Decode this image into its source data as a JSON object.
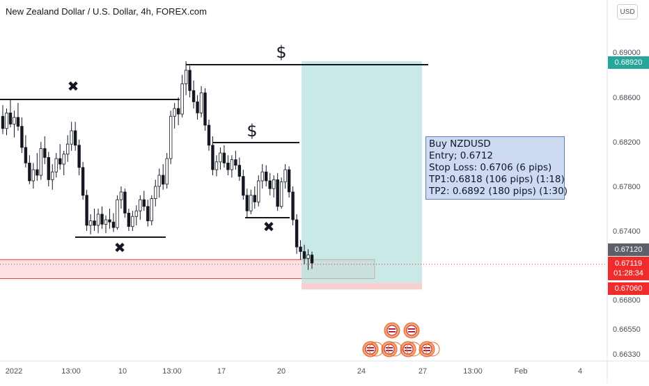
{
  "header": {
    "symbol_title": "New Zealand Dollar / U.S. Dollar, 4h, FOREX.com",
    "currency_button": "USD"
  },
  "info_box": {
    "lines": [
      "Buy NZDUSD",
      "Entry; 0.6712",
      "Stop Loss: 0.6706 (6 pips)",
      "TP1:0.6818 (106 pips) (1:18)",
      "TP2: 0.6892 (180 pips) (1:30)"
    ]
  },
  "price_tags": {
    "tp": {
      "label": "0.68920",
      "color": "#26a69a"
    },
    "entry": {
      "label": "0.67120",
      "color": "#5d606b"
    },
    "current": {
      "label": "0.67119",
      "countdown": "01:28:34",
      "color": "#ef2b2b"
    },
    "stop": {
      "label": "0.67060",
      "color": "#ef2b2b"
    }
  },
  "annotations": {
    "dollar_labels": [
      "$",
      "$"
    ],
    "cross_labels": [
      "✖",
      "✖",
      "✖"
    ]
  },
  "colors": {
    "bullish": "#26a69a",
    "bearish": "#ef5350",
    "candle": "#131722",
    "profit_zone": "#b2dfdb",
    "loss_zone": "#f5c6c6",
    "support_zone_border": "#e53935",
    "support_zone_fill": "#fde3e3",
    "level_line": "#131722"
  },
  "chart_data": {
    "type": "candlestick",
    "title": "New Zealand Dollar / U.S. Dollar, 4h, FOREX.com",
    "y_axis": {
      "ticks": [
        0.69,
        0.686,
        0.682,
        0.678,
        0.674,
        0.668,
        0.6655,
        0.6633
      ],
      "tick_labels": [
        "0.69000",
        "0.68600",
        "0.68200",
        "0.67800",
        "0.67400",
        "0.66800",
        "0.66550",
        "0.66330"
      ],
      "range": [
        0.6628,
        0.6918
      ]
    },
    "x_axis": {
      "tick_labels": [
        "2022",
        "13:00",
        "10",
        "13:00",
        "17",
        "20",
        "24",
        "27",
        "13:00",
        "Feb",
        "4"
      ]
    },
    "trade": {
      "direction": "long",
      "entry": 0.6712,
      "stop_loss": 0.6706,
      "take_profit": 0.6892
    },
    "levels": [
      {
        "kind": "resistance",
        "price": 0.6859
      },
      {
        "kind": "resistance",
        "price": 0.6892
      },
      {
        "kind": "resistance",
        "price": 0.6821
      },
      {
        "kind": "support",
        "price": 0.6737
      },
      {
        "kind": "support",
        "price": 0.6753
      }
    ],
    "support_zone": [
      0.67045,
      0.6715
    ],
    "candles": [
      [
        0.6843,
        0.6853,
        0.6827,
        0.6832
      ],
      [
        0.6832,
        0.685,
        0.6826,
        0.6846
      ],
      [
        0.6846,
        0.6858,
        0.6833,
        0.6836
      ],
      [
        0.6836,
        0.6848,
        0.6824,
        0.6842
      ],
      [
        0.6842,
        0.6855,
        0.683,
        0.6834
      ],
      [
        0.6834,
        0.6842,
        0.681,
        0.6815
      ],
      [
        0.6815,
        0.6826,
        0.6797,
        0.6801
      ],
      [
        0.6801,
        0.6808,
        0.6782,
        0.6785
      ],
      [
        0.6785,
        0.6801,
        0.6778,
        0.6795
      ],
      [
        0.6795,
        0.681,
        0.6785,
        0.679
      ],
      [
        0.679,
        0.682,
        0.6786,
        0.6814
      ],
      [
        0.6814,
        0.6825,
        0.68,
        0.6806
      ],
      [
        0.6806,
        0.6811,
        0.678,
        0.6786
      ],
      [
        0.6786,
        0.68,
        0.6777,
        0.6793
      ],
      [
        0.6793,
        0.681,
        0.6788,
        0.6805
      ],
      [
        0.6805,
        0.6818,
        0.6795,
        0.68
      ],
      [
        0.68,
        0.6812,
        0.679,
        0.6809
      ],
      [
        0.6809,
        0.6826,
        0.6802,
        0.6818
      ],
      [
        0.6818,
        0.6838,
        0.6812,
        0.683
      ],
      [
        0.683,
        0.6838,
        0.6812,
        0.6817
      ],
      [
        0.6817,
        0.6822,
        0.679,
        0.6797
      ],
      [
        0.6797,
        0.6802,
        0.6768,
        0.6772
      ],
      [
        0.6772,
        0.6777,
        0.674,
        0.6745
      ],
      [
        0.6745,
        0.6755,
        0.6737,
        0.6749
      ],
      [
        0.6749,
        0.676,
        0.674,
        0.6745
      ],
      [
        0.6745,
        0.676,
        0.6738,
        0.6755
      ],
      [
        0.6755,
        0.6762,
        0.6742,
        0.6746
      ],
      [
        0.6746,
        0.6754,
        0.6738,
        0.675
      ],
      [
        0.675,
        0.676,
        0.6742,
        0.6748
      ],
      [
        0.6748,
        0.6756,
        0.6739,
        0.6743
      ],
      [
        0.6743,
        0.6772,
        0.6741,
        0.6768
      ],
      [
        0.6768,
        0.678,
        0.676,
        0.6775
      ],
      [
        0.6775,
        0.6778,
        0.6752,
        0.6756
      ],
      [
        0.6756,
        0.676,
        0.674,
        0.6744
      ],
      [
        0.6744,
        0.6758,
        0.674,
        0.6753
      ],
      [
        0.6753,
        0.6763,
        0.6745,
        0.6758
      ],
      [
        0.6758,
        0.6772,
        0.675,
        0.6768
      ],
      [
        0.6768,
        0.6776,
        0.6758,
        0.6762
      ],
      [
        0.6762,
        0.6768,
        0.6744,
        0.6749
      ],
      [
        0.6749,
        0.6772,
        0.6745,
        0.6769
      ],
      [
        0.6769,
        0.6786,
        0.6762,
        0.678
      ],
      [
        0.678,
        0.6796,
        0.677,
        0.679
      ],
      [
        0.679,
        0.68,
        0.6777,
        0.6782
      ],
      [
        0.6782,
        0.681,
        0.6778,
        0.6805
      ],
      [
        0.6805,
        0.6848,
        0.68,
        0.6843
      ],
      [
        0.6843,
        0.6855,
        0.6832,
        0.685
      ],
      [
        0.685,
        0.686,
        0.6835,
        0.6845
      ],
      [
        0.6845,
        0.688,
        0.6842,
        0.6872
      ],
      [
        0.6872,
        0.6892,
        0.6862,
        0.6884
      ],
      [
        0.6884,
        0.6888,
        0.686,
        0.6866
      ],
      [
        0.6866,
        0.6875,
        0.685,
        0.6856
      ],
      [
        0.6856,
        0.6862,
        0.684,
        0.6846
      ],
      [
        0.6846,
        0.687,
        0.6842,
        0.6864
      ],
      [
        0.6864,
        0.6868,
        0.683,
        0.6835
      ],
      [
        0.6835,
        0.684,
        0.6812,
        0.6817
      ],
      [
        0.6817,
        0.6825,
        0.679,
        0.6795
      ],
      [
        0.6795,
        0.6808,
        0.6789,
        0.6802
      ],
      [
        0.6802,
        0.6815,
        0.6795,
        0.681
      ],
      [
        0.681,
        0.6817,
        0.6797,
        0.6801
      ],
      [
        0.6801,
        0.6808,
        0.679,
        0.6795
      ],
      [
        0.6795,
        0.6808,
        0.6788,
        0.6804
      ],
      [
        0.6804,
        0.6812,
        0.6795,
        0.6799
      ],
      [
        0.6799,
        0.6806,
        0.6785,
        0.6789
      ],
      [
        0.6789,
        0.6795,
        0.6768,
        0.6772
      ],
      [
        0.6772,
        0.6778,
        0.6752,
        0.6758
      ],
      [
        0.6758,
        0.6777,
        0.6755,
        0.6772
      ],
      [
        0.6772,
        0.678,
        0.676,
        0.6766
      ],
      [
        0.6766,
        0.679,
        0.6762,
        0.6785
      ],
      [
        0.6785,
        0.68,
        0.6778,
        0.6793
      ],
      [
        0.6793,
        0.6799,
        0.678,
        0.6785
      ],
      [
        0.6785,
        0.6792,
        0.6772,
        0.6778
      ],
      [
        0.6778,
        0.679,
        0.677,
        0.6786
      ],
      [
        0.6786,
        0.6792,
        0.6758,
        0.6762
      ],
      [
        0.6762,
        0.6788,
        0.676,
        0.6784
      ],
      [
        0.6784,
        0.68,
        0.6778,
        0.6795
      ],
      [
        0.6795,
        0.6798,
        0.677,
        0.6775
      ],
      [
        0.6775,
        0.678,
        0.6745,
        0.675
      ],
      [
        0.675,
        0.6755,
        0.672,
        0.6726
      ],
      [
        0.6726,
        0.6732,
        0.6715,
        0.6722
      ],
      [
        0.6722,
        0.6728,
        0.6711,
        0.6716
      ],
      [
        0.6716,
        0.6724,
        0.6706,
        0.6719
      ],
      [
        0.6719,
        0.6722,
        0.6707,
        0.6712
      ]
    ]
  }
}
